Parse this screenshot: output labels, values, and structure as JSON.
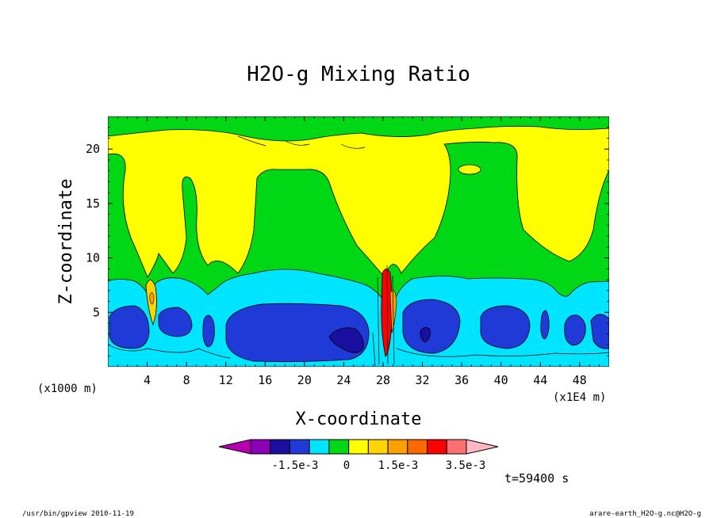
{
  "chart_data": {
    "type": "heatmap",
    "title": "H2O-g Mixing Ratio",
    "xlabel": "X-coordinate",
    "ylabel": "Z-coordinate",
    "x_unit_left": "(x1000 m)",
    "x_unit_right": "(x1E4 m)",
    "xlim": [
      0,
      51
    ],
    "ylim": [
      0,
      23
    ],
    "xticks": [
      4,
      8,
      12,
      16,
      20,
      24,
      28,
      32,
      36,
      40,
      44,
      48
    ],
    "yticks": [
      5,
      10,
      15,
      20
    ],
    "time_label": "t=59400 s",
    "colorbar": {
      "labels": [
        "-1.5e-3",
        "0",
        "1.5e-3",
        "3.5e-3"
      ],
      "colors": [
        "#b700b0",
        "#8a00b4",
        "#1a0fa0",
        "#1f3ad6",
        "#00e5ff",
        "#00d816",
        "#ffff00",
        "#ffd400",
        "#ff9f00",
        "#ff6a00",
        "#ff0000",
        "#ff6f72",
        "#ffb8c4"
      ]
    },
    "colors": {
      "background": "#ffff00",
      "green": "#00d816",
      "cyan": "#00e5ff",
      "blue": "#1f3ad6",
      "navy": "#1a0fa0"
    }
  },
  "footer": {
    "left": "/usr/bin/gpview  2010-11-19",
    "right": "arare-earth_H2O-g.nc@H2O-g"
  }
}
